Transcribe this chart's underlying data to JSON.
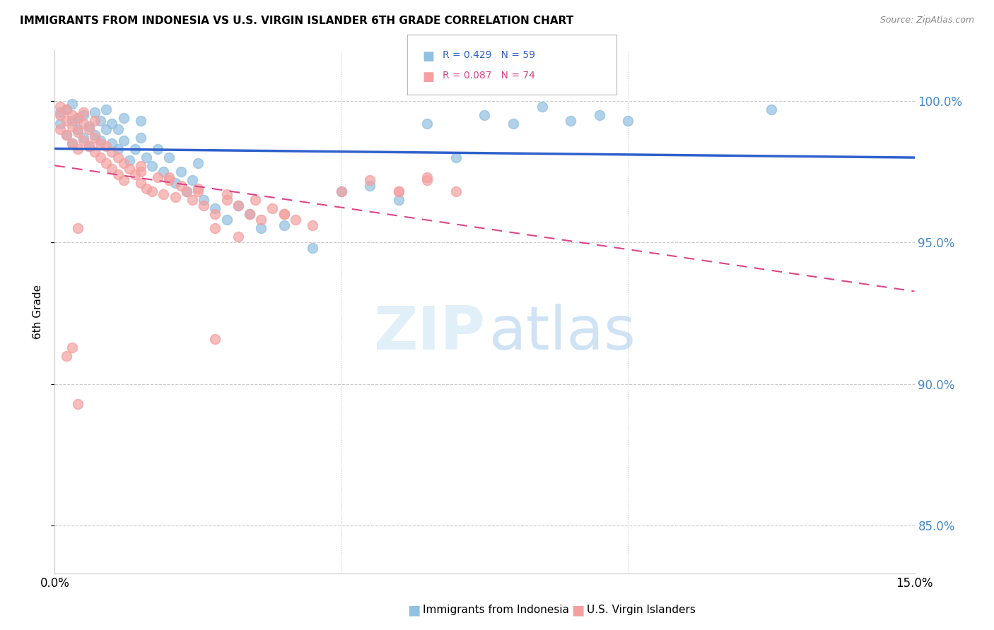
{
  "title": "IMMIGRANTS FROM INDONESIA VS U.S. VIRGIN ISLANDER 6TH GRADE CORRELATION CHART",
  "source": "Source: ZipAtlas.com",
  "ylabel": "6th Grade",
  "xmin": 0.0,
  "xmax": 0.15,
  "ymin": 0.833,
  "ymax": 1.018,
  "yticks": [
    0.85,
    0.9,
    0.95,
    1.0
  ],
  "ytick_labels": [
    "85.0%",
    "90.0%",
    "95.0%",
    "100.0%"
  ],
  "legend_blue_label": "Immigrants from Indonesia",
  "legend_pink_label": "U.S. Virgin Islanders",
  "blue_color": "#92c0e0",
  "pink_color": "#f4a0a0",
  "trend_blue_color": "#3060cc",
  "trend_pink_color": "#dd4488",
  "blue_x": [
    0.001,
    0.001,
    0.002,
    0.002,
    0.003,
    0.003,
    0.003,
    0.004,
    0.004,
    0.005,
    0.005,
    0.006,
    0.006,
    0.007,
    0.007,
    0.008,
    0.008,
    0.009,
    0.009,
    0.01,
    0.01,
    0.011,
    0.011,
    0.012,
    0.012,
    0.013,
    0.014,
    0.015,
    0.015,
    0.016,
    0.017,
    0.018,
    0.019,
    0.02,
    0.021,
    0.022,
    0.023,
    0.024,
    0.025,
    0.026,
    0.028,
    0.03,
    0.032,
    0.034,
    0.036,
    0.04,
    0.045,
    0.05,
    0.055,
    0.06,
    0.065,
    0.07,
    0.075,
    0.08,
    0.085,
    0.09,
    0.095,
    0.1,
    0.125
  ],
  "blue_y": [
    0.992,
    0.996,
    0.988,
    0.997,
    0.985,
    0.993,
    0.999,
    0.99,
    0.994,
    0.987,
    0.995,
    0.984,
    0.991,
    0.988,
    0.996,
    0.986,
    0.993,
    0.99,
    0.997,
    0.985,
    0.992,
    0.983,
    0.99,
    0.986,
    0.994,
    0.979,
    0.983,
    0.987,
    0.993,
    0.98,
    0.977,
    0.983,
    0.975,
    0.98,
    0.971,
    0.975,
    0.968,
    0.972,
    0.978,
    0.965,
    0.962,
    0.958,
    0.963,
    0.96,
    0.955,
    0.956,
    0.948,
    0.968,
    0.97,
    0.965,
    0.992,
    0.98,
    0.995,
    0.992,
    0.998,
    0.993,
    0.995,
    0.993,
    0.997
  ],
  "pink_x": [
    0.001,
    0.001,
    0.001,
    0.002,
    0.002,
    0.002,
    0.003,
    0.003,
    0.003,
    0.004,
    0.004,
    0.004,
    0.005,
    0.005,
    0.005,
    0.006,
    0.006,
    0.007,
    0.007,
    0.007,
    0.008,
    0.008,
    0.009,
    0.009,
    0.01,
    0.01,
    0.011,
    0.011,
    0.012,
    0.012,
    0.013,
    0.014,
    0.015,
    0.015,
    0.016,
    0.017,
    0.018,
    0.019,
    0.02,
    0.021,
    0.022,
    0.023,
    0.024,
    0.025,
    0.026,
    0.028,
    0.03,
    0.032,
    0.034,
    0.036,
    0.038,
    0.04,
    0.042,
    0.045,
    0.05,
    0.055,
    0.06,
    0.065,
    0.015,
    0.02,
    0.025,
    0.03,
    0.035,
    0.04,
    0.06,
    0.065,
    0.07,
    0.004,
    0.028,
    0.028,
    0.032,
    0.003,
    0.002,
    0.004
  ],
  "pink_y": [
    0.99,
    0.995,
    0.998,
    0.988,
    0.993,
    0.997,
    0.985,
    0.991,
    0.995,
    0.983,
    0.989,
    0.994,
    0.986,
    0.992,
    0.996,
    0.984,
    0.99,
    0.982,
    0.987,
    0.993,
    0.98,
    0.985,
    0.978,
    0.984,
    0.976,
    0.982,
    0.974,
    0.98,
    0.972,
    0.978,
    0.976,
    0.974,
    0.971,
    0.977,
    0.969,
    0.968,
    0.973,
    0.967,
    0.972,
    0.966,
    0.97,
    0.968,
    0.965,
    0.968,
    0.963,
    0.96,
    0.965,
    0.963,
    0.96,
    0.958,
    0.962,
    0.96,
    0.958,
    0.956,
    0.968,
    0.972,
    0.968,
    0.973,
    0.975,
    0.973,
    0.969,
    0.967,
    0.965,
    0.96,
    0.968,
    0.972,
    0.968,
    0.955,
    0.916,
    0.955,
    0.952,
    0.913,
    0.91,
    0.893
  ]
}
